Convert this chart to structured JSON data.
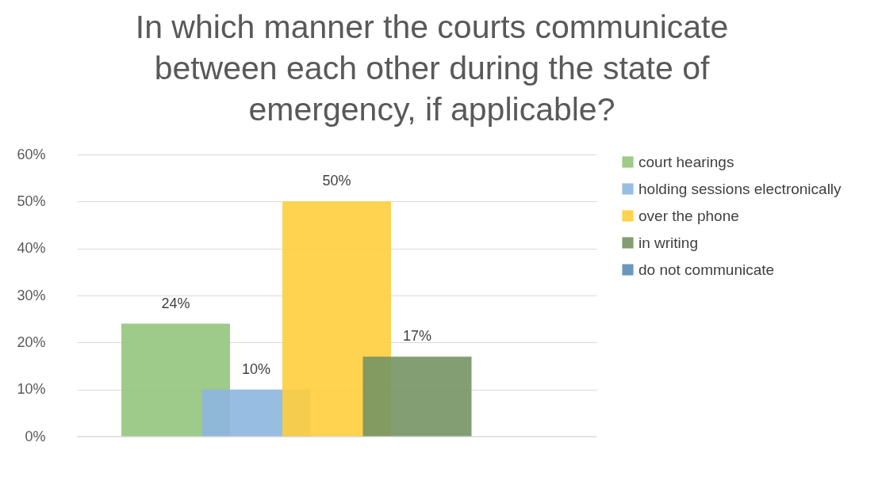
{
  "chart_data": {
    "type": "bar",
    "title": "In which manner the courts communicate between each other during the state of emergency, if applicable?",
    "categories": [
      null
    ],
    "series": [
      {
        "name": "court hearings",
        "color": "#93c47d",
        "values": [
          24
        ],
        "value_labels": [
          "24%"
        ]
      },
      {
        "name": "holding sessions electronically",
        "color": "#8db6e0",
        "values": [
          10
        ],
        "value_labels": [
          "10%"
        ]
      },
      {
        "name": "over the phone",
        "color": "#ffcd3c",
        "values": [
          50
        ],
        "value_labels": [
          "50%"
        ]
      },
      {
        "name": "in writing",
        "color": "#769463",
        "values": [
          17
        ],
        "value_labels": [
          "17%"
        ]
      },
      {
        "name": "do not communicate",
        "color": "#5b8db3",
        "values": [
          null
        ],
        "value_labels": [
          null
        ]
      }
    ],
    "ylim": [
      0,
      60
    ],
    "yticks": [
      {
        "value": 0,
        "label": "0%"
      },
      {
        "value": 10,
        "label": "10%"
      },
      {
        "value": 20,
        "label": "20%"
      },
      {
        "value": 30,
        "label": "30%"
      },
      {
        "value": 40,
        "label": "40%"
      },
      {
        "value": 50,
        "label": "50%"
      },
      {
        "value": 60,
        "label": "60%"
      }
    ],
    "grid": "y",
    "legend": "right"
  }
}
